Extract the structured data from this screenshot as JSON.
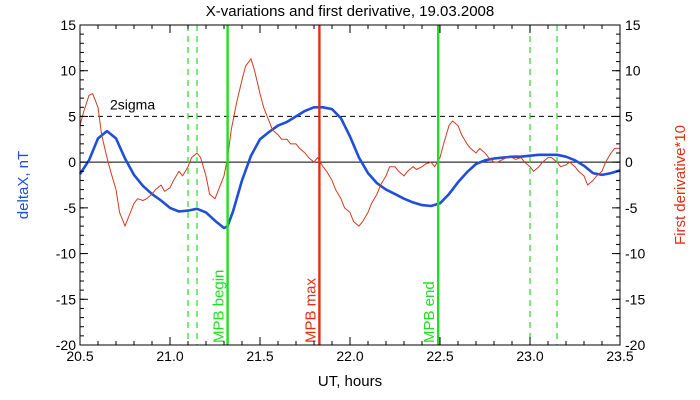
{
  "chart_data": {
    "type": "line",
    "title": "X-variations and first derivative, 19.03.2008",
    "xlabel": "UT, hours",
    "ylabel_left": "deltaX, nT",
    "ylabel_right": "First derivative*10",
    "xlim": [
      20.5,
      23.5
    ],
    "ylim": [
      -20,
      15
    ],
    "x_ticks": [
      20.5,
      21.0,
      21.5,
      22.0,
      22.5,
      23.0,
      23.5
    ],
    "x_tick_labels": [
      "20.5",
      "21.0",
      "21.5",
      "22.0",
      "22.5",
      "23.0",
      "23.5"
    ],
    "y_ticks": [
      15,
      10,
      5,
      0,
      -5,
      -10,
      -15,
      -20
    ],
    "y_tick_labels": [
      "15",
      "10",
      "5",
      "0",
      "-5",
      "-10",
      "-15",
      "-20"
    ],
    "right_y_ticks": [
      15,
      10,
      5,
      0,
      -5,
      -10,
      -15,
      -20
    ],
    "right_y_tick_labels": [
      "15",
      "10",
      "5",
      "0",
      "-5",
      "-10",
      "-15",
      "-20"
    ],
    "colors": {
      "deltaX": "#1f4fd8",
      "derivative": "#d23a1e",
      "mpb_lines": "#22dd22",
      "mpb_max": "#e03010",
      "text_red": "#e03010"
    },
    "reference_lines": [
      {
        "y": 0,
        "style": "solid",
        "color": "#000000"
      },
      {
        "y": 5,
        "style": "dashed",
        "color": "#000000",
        "label": "2sigma"
      }
    ],
    "vertical_lines": [
      {
        "x": 21.1,
        "style": "dashed",
        "color": "#22dd22"
      },
      {
        "x": 21.15,
        "style": "dashed",
        "color": "#22dd22"
      },
      {
        "x": 21.32,
        "style": "solid",
        "color": "#22dd22",
        "label": "MPB begin"
      },
      {
        "x": 21.83,
        "style": "solid",
        "color": "#e03010",
        "label": "MPB max"
      },
      {
        "x": 22.49,
        "style": "solid",
        "color": "#22dd22",
        "label": "MPB end"
      },
      {
        "x": 23.0,
        "style": "dashed",
        "color": "#22dd22"
      },
      {
        "x": 23.15,
        "style": "dashed",
        "color": "#22dd22"
      }
    ],
    "series": [
      {
        "axis": "left",
        "x": [
          20.5,
          20.55,
          20.6,
          20.65,
          20.7,
          20.75,
          20.8,
          20.85,
          20.9,
          20.95,
          21.0,
          21.05,
          21.1,
          21.15,
          21.2,
          21.25,
          21.3,
          21.32,
          21.35,
          21.4,
          21.45,
          21.5,
          21.55,
          21.6,
          21.65,
          21.7,
          21.75,
          21.8,
          21.85,
          21.9,
          21.95,
          22.0,
          22.05,
          22.1,
          22.15,
          22.2,
          22.25,
          22.3,
          22.35,
          22.4,
          22.45,
          22.5,
          22.55,
          22.6,
          22.65,
          22.7,
          22.75,
          22.8,
          22.85,
          22.9,
          22.95,
          23.0,
          23.05,
          23.1,
          23.15,
          23.2,
          23.25,
          23.3,
          23.35,
          23.4,
          23.45,
          23.5
        ],
        "values": [
          -1.3,
          0.2,
          2.6,
          3.4,
          2.6,
          0.4,
          -1.4,
          -2.6,
          -3.5,
          -4.2,
          -5.0,
          -5.4,
          -5.3,
          -5.1,
          -5.5,
          -6.4,
          -7.2,
          -7.0,
          -5.4,
          -2.0,
          0.7,
          2.5,
          3.3,
          4.0,
          4.4,
          5.0,
          5.6,
          6.0,
          6.0,
          5.8,
          4.8,
          2.8,
          0.5,
          -1.2,
          -2.3,
          -3.0,
          -3.5,
          -4.0,
          -4.4,
          -4.7,
          -4.8,
          -4.5,
          -3.5,
          -2.2,
          -1.1,
          -0.2,
          0.2,
          0.4,
          0.5,
          0.6,
          0.6,
          0.7,
          0.8,
          0.8,
          0.8,
          0.6,
          0.2,
          -0.4,
          -1.2,
          -1.4,
          -1.2,
          -0.9
        ]
      },
      {
        "axis": "right",
        "x": [
          20.5,
          20.52,
          20.55,
          20.57,
          20.6,
          20.62,
          20.65,
          20.67,
          20.7,
          20.72,
          20.75,
          20.77,
          20.8,
          20.82,
          20.85,
          20.87,
          20.9,
          20.92,
          20.95,
          20.97,
          21.0,
          21.02,
          21.05,
          21.07,
          21.1,
          21.12,
          21.15,
          21.17,
          21.2,
          21.22,
          21.25,
          21.27,
          21.3,
          21.32,
          21.34,
          21.37,
          21.4,
          21.42,
          21.45,
          21.47,
          21.5,
          21.52,
          21.55,
          21.57,
          21.6,
          21.62,
          21.65,
          21.67,
          21.7,
          21.72,
          21.75,
          21.77,
          21.8,
          21.82,
          21.85,
          21.87,
          21.9,
          21.92,
          21.95,
          21.97,
          22.0,
          22.02,
          22.05,
          22.07,
          22.1,
          22.12,
          22.15,
          22.17,
          22.2,
          22.22,
          22.25,
          22.27,
          22.3,
          22.32,
          22.35,
          22.37,
          22.4,
          22.42,
          22.45,
          22.47,
          22.5,
          22.52,
          22.55,
          22.57,
          22.6,
          22.62,
          22.65,
          22.67,
          22.7,
          22.72,
          22.75,
          22.77,
          22.8,
          22.82,
          22.85,
          22.87,
          22.9,
          22.92,
          22.95,
          22.97,
          23.0,
          23.02,
          23.05,
          23.07,
          23.1,
          23.12,
          23.15,
          23.17,
          23.2,
          23.22,
          23.25,
          23.27,
          23.3,
          23.32,
          23.35,
          23.37,
          23.4,
          23.42,
          23.45,
          23.47,
          23.5
        ],
        "values": [
          4.0,
          5.5,
          7.3,
          7.5,
          6.0,
          3.0,
          0.5,
          -1.0,
          -3.0,
          -5.5,
          -7.0,
          -6.0,
          -4.5,
          -4.0,
          -4.2,
          -4.0,
          -3.5,
          -3.0,
          -2.5,
          -3.2,
          -2.8,
          -2.0,
          -1.0,
          -1.5,
          -0.5,
          0.5,
          1.0,
          0.5,
          -1.5,
          -3.5,
          -4.0,
          -3.0,
          -1.5,
          0.5,
          3.5,
          6.5,
          9.0,
          10.5,
          11.3,
          10.0,
          7.5,
          6.0,
          4.5,
          3.5,
          3.0,
          2.5,
          2.5,
          2.0,
          2.0,
          1.5,
          1.0,
          0.5,
          0.0,
          0.5,
          -0.5,
          -1.0,
          -2.0,
          -3.0,
          -4.0,
          -5.0,
          -5.5,
          -6.5,
          -7.0,
          -6.5,
          -5.5,
          -4.5,
          -3.5,
          -2.5,
          -1.5,
          -0.5,
          -0.5,
          -1.0,
          -1.5,
          -1.0,
          -0.5,
          -0.8,
          -0.5,
          -0.2,
          0.0,
          -0.5,
          0.5,
          2.0,
          4.0,
          4.5,
          4.0,
          3.0,
          2.0,
          1.5,
          1.0,
          1.5,
          1.0,
          0.5,
          0.0,
          0.0,
          0.3,
          0.5,
          0.5,
          0.3,
          0.5,
          0.0,
          -0.5,
          -1.0,
          -0.5,
          0.0,
          0.5,
          0.5,
          0.0,
          -0.5,
          -0.3,
          0.0,
          -0.5,
          -1.0,
          -1.5,
          -2.5,
          -2.0,
          -1.5,
          -1.0,
          0.0,
          1.0,
          1.5,
          1.5
        ]
      }
    ]
  }
}
